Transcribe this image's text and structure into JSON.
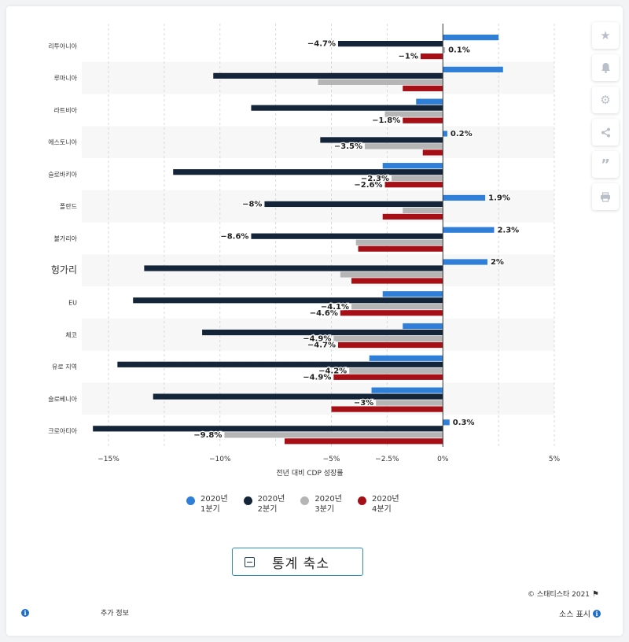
{
  "chart_data": {
    "type": "bar",
    "orientation": "horizontal",
    "categories": [
      "리투아니아",
      "루마니아",
      "라트비아",
      "에스토니아",
      "슬로바키아",
      "폴란드",
      "불가리아",
      "헝가리",
      "EU",
      "체코",
      "유로 지역",
      "슬로베니아",
      "크로아티아"
    ],
    "series": [
      {
        "name": "2020년 1분기",
        "color": "#2f7ed8",
        "values": [
          2.5,
          2.7,
          -1.2,
          0.2,
          -2.7,
          1.9,
          2.3,
          2.0,
          -2.7,
          -1.8,
          -3.3,
          -3.2,
          0.3
        ]
      },
      {
        "name": "2020년 2분기",
        "color": "#14253a",
        "values": [
          -4.7,
          -10.3,
          -8.6,
          -5.5,
          -12.1,
          -8.0,
          -8.6,
          -13.4,
          -13.9,
          -10.8,
          -14.6,
          -13.0,
          -15.7
        ]
      },
      {
        "name": "2020년 3분기",
        "color": "#b5b5b5",
        "values": [
          0.1,
          -5.6,
          -2.6,
          -3.5,
          -2.3,
          -1.8,
          -3.9,
          -4.6,
          -4.1,
          -4.9,
          -4.2,
          -3.0,
          -9.8
        ]
      },
      {
        "name": "2020년 4분기",
        "color": "#a50f15",
        "values": [
          -1.0,
          -1.8,
          -1.8,
          -0.9,
          -2.6,
          -2.7,
          -3.8,
          -4.1,
          -4.6,
          -4.7,
          -4.9,
          -5.0,
          -7.1
        ]
      }
    ],
    "data_labels": [
      {
        "category": "리투아니아",
        "series": 3,
        "text": "−1%"
      },
      {
        "category": "리투아니아",
        "series": 2,
        "text": "0.1%"
      },
      {
        "category": "리투아니아",
        "series": 1,
        "text": "−4.7%"
      },
      {
        "category": "라트비아",
        "series": 3,
        "text": "−1.8%"
      },
      {
        "category": "에스토니아",
        "series": 2,
        "text": "−3.5%"
      },
      {
        "category": "에스토니아",
        "series": 0,
        "text": "0.2%"
      },
      {
        "category": "슬로바키아",
        "series": 3,
        "text": "−2.6%"
      },
      {
        "category": "슬로바키아",
        "series": 2,
        "text": "−2.3%"
      },
      {
        "category": "폴란드",
        "series": 1,
        "text": "−8%"
      },
      {
        "category": "폴란드",
        "series": 0,
        "text": "1.9%"
      },
      {
        "category": "불가리아",
        "series": 1,
        "text": "−8.6%"
      },
      {
        "category": "불가리아",
        "series": 0,
        "text": "2.3%"
      },
      {
        "category": "헝가리",
        "series": 0,
        "text": "2%"
      },
      {
        "category": "EU",
        "series": 3,
        "text": "−4.6%"
      },
      {
        "category": "EU",
        "series": 2,
        "text": "−4.1%"
      },
      {
        "category": "체코",
        "series": 3,
        "text": "−4.7%"
      },
      {
        "category": "체코",
        "series": 2,
        "text": "−4.9%"
      },
      {
        "category": "유로 지역",
        "series": 3,
        "text": "−4.9%"
      },
      {
        "category": "유로 지역",
        "series": 2,
        "text": "−4.2%"
      },
      {
        "category": "슬로베니아",
        "series": 2,
        "text": "−3%"
      },
      {
        "category": "크로아티아",
        "series": 2,
        "text": "−9.8%"
      },
      {
        "category": "크로아티아",
        "series": 0,
        "text": "0.3%"
      }
    ],
    "x_ticks": [
      -15,
      -12.5,
      -10,
      -7.5,
      -5,
      -2.5,
      0,
      2.5,
      5
    ],
    "x_tick_labels": [
      "−15%",
      "",
      "−10%",
      "",
      "−5%",
      "−2.5%",
      "0%",
      "",
      "5%"
    ],
    "xlim": [
      -16.2,
      5.0
    ],
    "xlabel": "전년 대비 CDP 성장률",
    "ylabel": "",
    "grid": true,
    "legend_position": "bottom"
  },
  "toolbar": {
    "icons": [
      "star-icon",
      "bell-icon",
      "gear-icon",
      "share-icon",
      "quote-icon",
      "print-icon"
    ]
  },
  "legend": {
    "items": [
      {
        "line1": "2020년",
        "line2": "1분기"
      },
      {
        "line1": "2020년",
        "line2": "2분기"
      },
      {
        "line1": "2020년",
        "line2": "3분기"
      },
      {
        "line1": "2020년",
        "line2": "4분기"
      }
    ]
  },
  "footer": {
    "collapse_label": "통계 축소",
    "copyright": "© 스태티스타 2021",
    "more_info": "추가 정보",
    "source": "소스 표시"
  }
}
